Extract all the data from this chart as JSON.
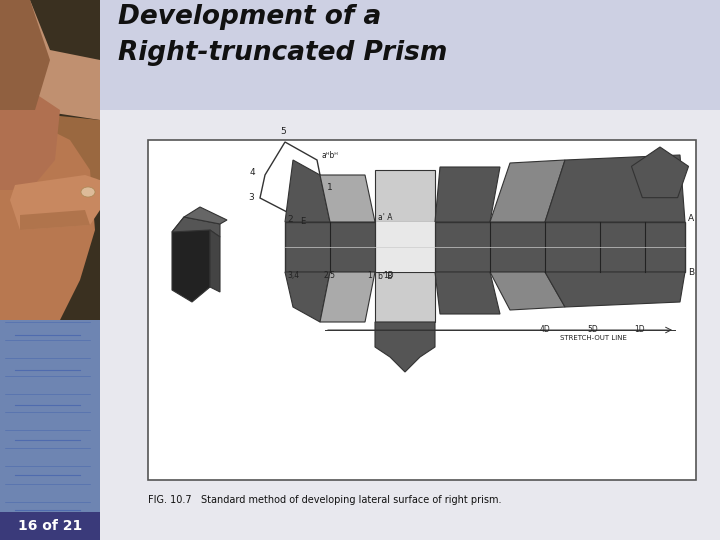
{
  "title_line1": "Development of a",
  "title_line2": "Right-truncated Prism",
  "title_color": "#111111",
  "title_bg_color": "#cdd0e3",
  "slide_bg_color": "#cdd0e3",
  "body_bg_color": "#dcdde8",
  "page_indicator": "16 of 21",
  "page_indicator_bg": "#3a3a7a",
  "page_indicator_color": "#ffffff",
  "caption_text": "FIG. 10.7   Standard method of developing lateral surface of right prism.",
  "diagram_bg": "#f5f5f0",
  "diagram_border": "#555555",
  "dark_fill": "#555555",
  "mid_fill": "#888888",
  "light_fill": "#aaaaaa",
  "very_dark": "#222222"
}
